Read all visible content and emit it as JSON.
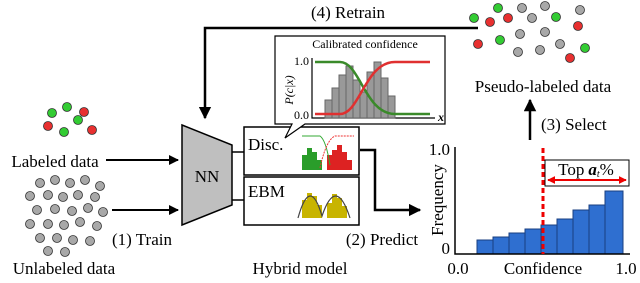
{
  "steps": {
    "train": "(1) Train",
    "predict": "(2) Predict",
    "select": "(3) Select",
    "retrain": "(4) Retrain"
  },
  "data_labels": {
    "labeled": "Labeled data",
    "unlabeled": "Unlabeled data",
    "pseudo": "Pseudo-labeled data"
  },
  "model": {
    "nn": "NN",
    "disc": "Disc.",
    "ebm": "EBM",
    "caption": "Hybrid model"
  },
  "inset": {
    "title": "Calibrated confidence",
    "ylabel": "P(c|x)",
    "ytick_top": "1.0",
    "ytick_bottom": "0.0",
    "xlabel": "x"
  },
  "histogram": {
    "ylabel": "Frequency",
    "yticks": [
      "1.0",
      "0"
    ],
    "xticks": [
      "0.0",
      "1.0"
    ],
    "xlabel": "Confidence",
    "threshold": {
      "prefix": "Top",
      "var": "a",
      "sub": "t",
      "suffix": "%"
    }
  }
}
